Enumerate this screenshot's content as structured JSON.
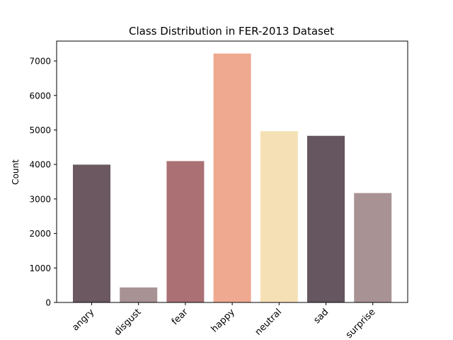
{
  "chart_data": {
    "type": "bar",
    "title": "Class Distribution in FER-2013 Dataset",
    "xlabel": "",
    "ylabel": "Count",
    "categories": [
      "angry",
      "disgust",
      "fear",
      "happy",
      "neutral",
      "sad",
      "surprise"
    ],
    "values": [
      3995,
      436,
      4097,
      7215,
      4965,
      4830,
      3171
    ],
    "colors": [
      "#6b5861",
      "#a99294",
      "#ab7073",
      "#eea990",
      "#f5e0b5",
      "#655660",
      "#a99294"
    ],
    "ylim": [
      0,
      7576
    ],
    "yticks": [
      0,
      1000,
      2000,
      3000,
      4000,
      5000,
      6000,
      7000
    ],
    "grid": false,
    "legend": "none"
  }
}
